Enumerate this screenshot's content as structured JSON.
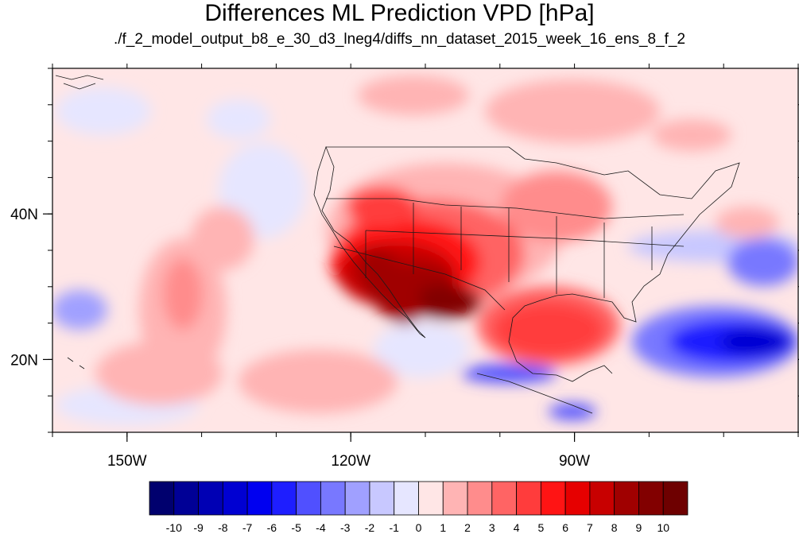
{
  "title": "Differences ML Prediction VPD [hPa]",
  "subtitle": "./f_2_model_output_b8_e_30_d3_lneg4/diffs_nn_dataset_2015_week_16_ens_8_f_2",
  "map": {
    "lon_range": [
      -160,
      -60
    ],
    "lat_range": [
      10,
      60
    ],
    "lon_ticks": [
      {
        "value": -150,
        "label": "150W"
      },
      {
        "value": -120,
        "label": "120W"
      },
      {
        "value": -90,
        "label": "90W"
      }
    ],
    "lat_ticks": [
      {
        "value": 40,
        "label": "40N"
      },
      {
        "value": 20,
        "label": "20N"
      }
    ]
  },
  "colorbar": {
    "levels": [
      -10,
      -9,
      -8,
      -7,
      -6,
      -5,
      -4,
      -3,
      -2,
      -1,
      0,
      1,
      2,
      3,
      4,
      5,
      6,
      7,
      8,
      9,
      10
    ],
    "colors": [
      "#00006e",
      "#000096",
      "#0000b4",
      "#0000d2",
      "#0000f0",
      "#1e1eff",
      "#5050ff",
      "#7878ff",
      "#a0a0ff",
      "#c8c8ff",
      "#e6e6ff",
      "#ffe6e6",
      "#ffb4b4",
      "#ff8c8c",
      "#ff6464",
      "#ff3c3c",
      "#ff1414",
      "#e60000",
      "#c80000",
      "#a00000",
      "#820000",
      "#6e0000"
    ]
  }
}
